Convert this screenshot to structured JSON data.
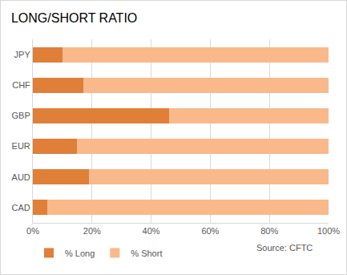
{
  "chart_data": {
    "type": "bar",
    "title": "LONG/SHORT RATIO",
    "orientation": "horizontal",
    "stacked": true,
    "categories": [
      "JPY",
      "CHF",
      "GBP",
      "EUR",
      "AUD",
      "CAD"
    ],
    "series": [
      {
        "name": "% Long",
        "color": "#e07f38",
        "values": [
          10,
          17,
          46,
          15,
          19,
          5
        ]
      },
      {
        "name": "% Short",
        "color": "#f9b98b",
        "values": [
          90,
          83,
          54,
          85,
          81,
          95
        ]
      }
    ],
    "xlim": [
      0,
      100
    ],
    "xticks": [
      {
        "value": 0,
        "label": "0%"
      },
      {
        "value": 20,
        "label": "20%"
      },
      {
        "value": 40,
        "label": "40%"
      },
      {
        "value": 60,
        "label": "60%"
      },
      {
        "value": 80,
        "label": "80%"
      },
      {
        "value": 100,
        "label": "100%"
      }
    ],
    "grid": true,
    "legend": "bottom left",
    "annotations": [
      "Source: CFTC"
    ]
  }
}
